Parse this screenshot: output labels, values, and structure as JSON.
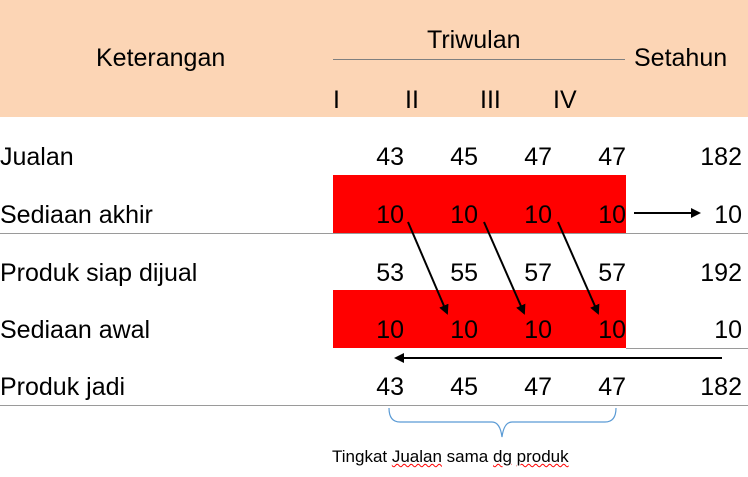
{
  "table": {
    "header": {
      "keterangan": "Keterangan",
      "triwulan": "Triwulan",
      "setahun": "Setahun",
      "quarters": [
        "I",
        "II",
        "III",
        "IV"
      ]
    },
    "rows": [
      {
        "label": "Jualan",
        "values": [
          "43",
          "45",
          "47",
          "47"
        ],
        "total": "182"
      },
      {
        "label": "Sediaan akhir",
        "values": [
          "10",
          "10",
          "10",
          "10"
        ],
        "total": "10"
      },
      {
        "label": "Produk siap dijual",
        "values": [
          "53",
          "55",
          "57",
          "57"
        ],
        "total": "192"
      },
      {
        "label": "Sediaan awal",
        "values": [
          "10",
          "10",
          "10",
          "10"
        ],
        "total": "10"
      },
      {
        "label": "Produk jadi",
        "values": [
          "43",
          "45",
          "47",
          "47"
        ],
        "total": "182"
      }
    ]
  },
  "note": {
    "prefix": "Tingkat ",
    "jualan": "Jualan",
    "sama": " sama ",
    "dg": "dg",
    "produk_sp": " ",
    "produk": "produk"
  },
  "colors": {
    "header_bg": "#fcd5b5",
    "highlight": "#ff0000",
    "brace": "#5b9bd5"
  }
}
